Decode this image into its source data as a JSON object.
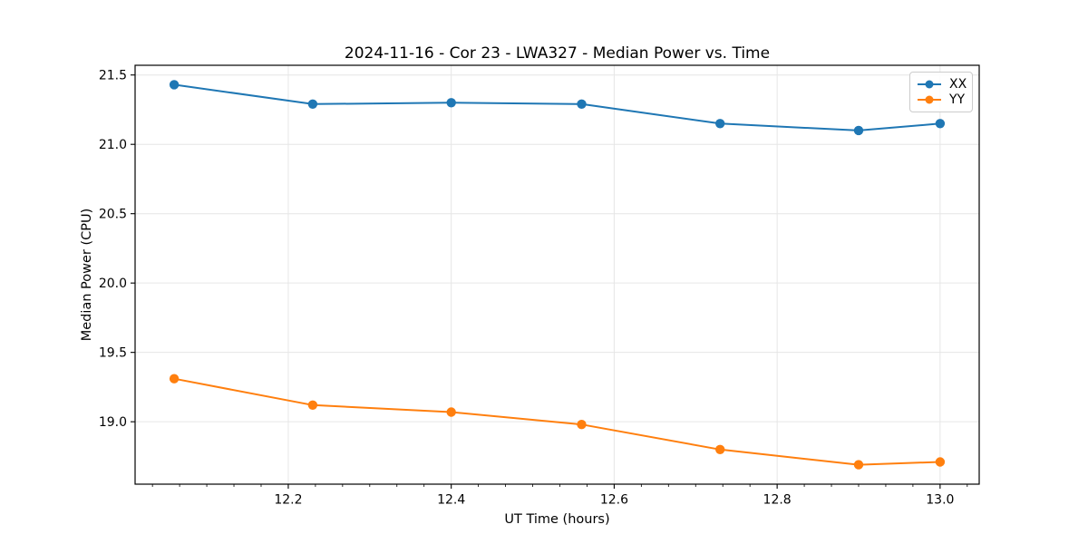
{
  "figure": {
    "background_color": "#ffffff",
    "text_color": "#000000"
  },
  "chart_data": {
    "type": "line",
    "title": "2024-11-16 - Cor 23 - LWA327 - Median Power vs. Time",
    "xlabel": "UT Time (hours)",
    "ylabel": "Median Power (CPU)",
    "x": [
      12.06,
      12.23,
      12.4,
      12.56,
      12.73,
      12.9,
      13.0
    ],
    "series": [
      {
        "name": "XX",
        "color": "#1f77b4",
        "marker": "circle",
        "values": [
          21.43,
          21.29,
          21.3,
          21.29,
          21.15,
          21.1,
          21.15
        ]
      },
      {
        "name": "YY",
        "color": "#ff7f0e",
        "marker": "circle",
        "values": [
          19.31,
          19.12,
          19.07,
          18.98,
          18.8,
          18.69,
          18.71
        ]
      }
    ],
    "xlim": [
      12.012,
      13.048
    ],
    "ylim": [
      18.55,
      21.57
    ],
    "xticks": [
      12.2,
      12.4,
      12.6,
      12.8,
      13.0
    ],
    "xtick_labels": [
      "12.2",
      "12.4",
      "12.6",
      "12.8",
      "13.0"
    ],
    "yticks": [
      19.0,
      19.5,
      20.0,
      20.5,
      21.0,
      21.5
    ],
    "ytick_labels": [
      "19.0",
      "19.5",
      "20.0",
      "20.5",
      "21.0",
      "21.5"
    ],
    "x_minor_tick_step": 0.0333333,
    "grid": true,
    "grid_color": "#e6e6e6",
    "axis_color": "#000000",
    "legend_position": "upper right"
  }
}
